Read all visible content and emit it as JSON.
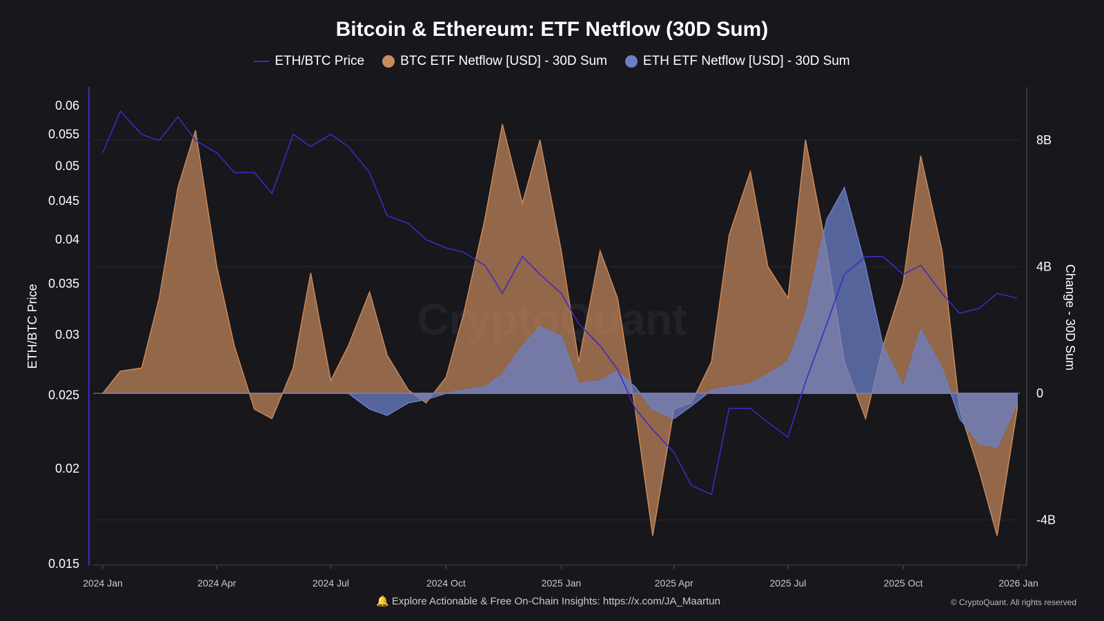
{
  "chart_data": {
    "type": "area",
    "title": "Bitcoin & Ethereum: ETF Netflow (30D Sum)",
    "ylabel_left": "ETH/BTC Price",
    "ylabel_right": "Change - 30D Sum",
    "yleft_ticks": [
      "0.06",
      "0.055",
      "0.05",
      "0.045",
      "0.04",
      "0.035",
      "0.03",
      "0.025",
      "0.02",
      "0.015"
    ],
    "yleft_scale": "log",
    "yleft_range": [
      0.015,
      0.06
    ],
    "yright_ticks": [
      "8B",
      "4B",
      "0",
      "-4B"
    ],
    "yright_tick_values": [
      8,
      4,
      0,
      -4
    ],
    "yright_range": [
      -5.5,
      10
    ],
    "xticks": [
      "2024 Jan",
      "2024 Apr",
      "2024 Jul",
      "2024 Oct",
      "2025 Jan",
      "2025 Apr",
      "2025 Jul",
      "2025 Oct",
      "2026 Jan"
    ],
    "xtick_dates": [
      "2024-01-01",
      "2024-04-01",
      "2024-07-01",
      "2024-10-01",
      "2025-01-01",
      "2025-04-01",
      "2025-07-01",
      "2025-10-01",
      "2026-01-01"
    ],
    "x": [
      "2024-01-01",
      "2024-01-15",
      "2024-02-01",
      "2024-02-15",
      "2024-03-01",
      "2024-03-15",
      "2024-04-01",
      "2024-04-15",
      "2024-05-01",
      "2024-05-15",
      "2024-06-01",
      "2024-06-15",
      "2024-07-01",
      "2024-07-15",
      "2024-08-01",
      "2024-08-15",
      "2024-09-01",
      "2024-09-15",
      "2024-10-01",
      "2024-10-15",
      "2024-11-01",
      "2024-11-15",
      "2024-12-01",
      "2024-12-15",
      "2025-01-01",
      "2025-01-15",
      "2025-02-01",
      "2025-02-15",
      "2025-03-01",
      "2025-03-15",
      "2025-04-01",
      "2025-04-15",
      "2025-05-01",
      "2025-05-15",
      "2025-06-01",
      "2025-06-15",
      "2025-07-01",
      "2025-07-15",
      "2025-08-01",
      "2025-08-15",
      "2025-09-01",
      "2025-09-15",
      "2025-10-01",
      "2025-10-15",
      "2025-11-01",
      "2025-11-15",
      "2025-12-01",
      "2025-12-15",
      "2025-12-31"
    ],
    "series": [
      {
        "name": "ETH/BTC Price",
        "type": "line",
        "axis": "left",
        "color": "#3d2bc4",
        "values": [
          0.052,
          0.059,
          0.055,
          0.054,
          0.058,
          0.054,
          0.052,
          0.049,
          0.049,
          0.046,
          0.055,
          0.053,
          0.055,
          0.053,
          0.049,
          0.043,
          0.042,
          0.04,
          0.039,
          0.0385,
          0.037,
          0.034,
          0.038,
          0.036,
          0.034,
          0.031,
          0.029,
          0.027,
          0.024,
          0.0225,
          0.021,
          0.019,
          0.0185,
          0.024,
          0.024,
          0.023,
          0.022,
          0.026,
          0.031,
          0.036,
          0.038,
          0.038,
          0.036,
          0.037,
          0.034,
          0.032,
          0.0325,
          0.034,
          0.0335
        ]
      },
      {
        "name": "BTC ETF Netflow [USD] - 30D Sum",
        "type": "area",
        "axis": "right",
        "color": "#c98a5c",
        "values": [
          0,
          0.7,
          0.8,
          3,
          6.5,
          8.3,
          4,
          1.5,
          -0.5,
          -0.8,
          0.8,
          3.8,
          0.4,
          1.5,
          3.2,
          1.2,
          0.1,
          -0.3,
          0.5,
          2.5,
          5.5,
          8.5,
          6,
          8,
          4.5,
          1,
          4.5,
          3,
          -0.5,
          -4.5,
          -0.5,
          -0.3,
          1,
          5,
          7,
          4,
          3,
          8,
          4.5,
          1,
          -0.8,
          1.5,
          3.5,
          7.5,
          4.5,
          -0.5,
          -2.5,
          -4.5,
          -0.5
        ]
      },
      {
        "name": "ETH ETF Netflow [USD] - 30D Sum",
        "type": "area",
        "axis": "right",
        "color": "#6b7fc4",
        "values": [
          0,
          0,
          0,
          0,
          0,
          0,
          0,
          0,
          0,
          0,
          0,
          0,
          0,
          0,
          -0.5,
          -0.7,
          -0.3,
          -0.2,
          0,
          0.1,
          0.2,
          0.6,
          1.5,
          2.1,
          1.8,
          0.3,
          0.4,
          0.7,
          0.2,
          -0.5,
          -0.8,
          -0.4,
          0.1,
          0.2,
          0.3,
          0.6,
          1.0,
          2.5,
          5.5,
          6.5,
          4,
          1.5,
          0.2,
          2,
          0.8,
          -0.8,
          -1.6,
          -1.7,
          -0.3
        ]
      }
    ]
  },
  "legend": [
    "ETH/BTC Price",
    "BTC ETF Netflow [USD] - 30D Sum",
    "ETH ETF Netflow [USD] - 30D Sum"
  ],
  "watermark": "CryptoQuant",
  "footer": {
    "text": "Explore Actionable & Free On-Chain Insights: ",
    "link": "https://x.com/JA_Maartun",
    "copyright": "© CryptoQuant. All rights reserved"
  }
}
